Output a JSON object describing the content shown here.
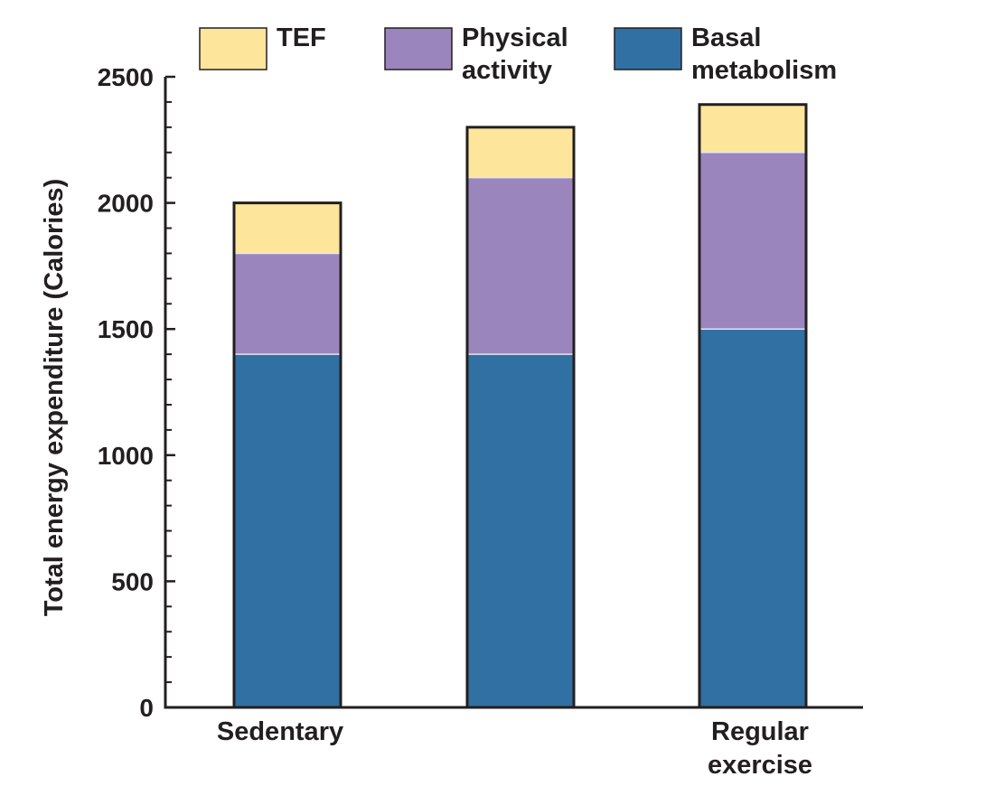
{
  "chart_data": {
    "type": "bar",
    "stacked": true,
    "categories": [
      "Sedentary",
      "",
      "Regular exercise"
    ],
    "category_lines": [
      [
        "Sedentary"
      ],
      [],
      [
        "Regular",
        "exercise"
      ]
    ],
    "series": [
      {
        "name": "Basal metabolism",
        "legend_lines": [
          "Basal",
          "metabolism"
        ],
        "color": "#3070a3",
        "values": [
          1400,
          1400,
          1500
        ]
      },
      {
        "name": "Physical activity",
        "legend_lines": [
          "Physical",
          "activity"
        ],
        "color": "#9b85bd",
        "values": [
          400,
          700,
          700
        ]
      },
      {
        "name": "TEF",
        "legend_lines": [
          "TEF"
        ],
        "color": "#fde59b",
        "values": [
          200,
          200,
          190
        ]
      }
    ],
    "legend_order": [
      "TEF",
      "Physical activity",
      "Basal metabolism"
    ],
    "title": "",
    "xlabel": "",
    "ylabel": "Total energy expenditure (Calories)",
    "ylim": [
      0,
      2500
    ],
    "yticks": [
      0,
      500,
      1000,
      1500,
      2000,
      2500
    ],
    "yticks_minor_step": 100,
    "grid": false,
    "legend_position": "top"
  }
}
